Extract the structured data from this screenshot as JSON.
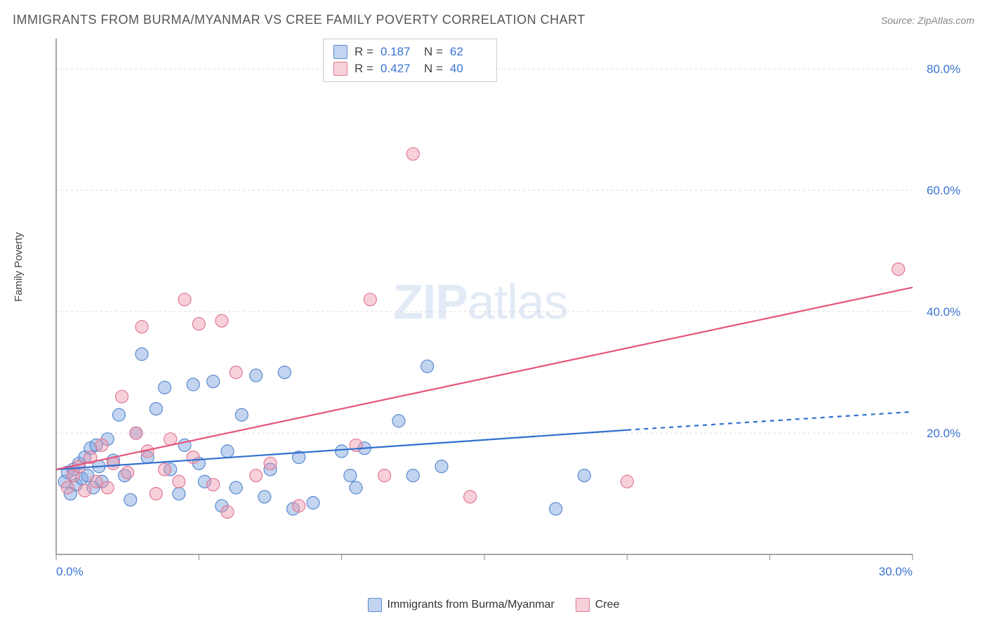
{
  "header": {
    "title": "IMMIGRANTS FROM BURMA/MYANMAR VS CREE FAMILY POVERTY CORRELATION CHART",
    "source": "Source: ZipAtlas.com"
  },
  "watermark": {
    "zip": "ZIP",
    "atlas": "atlas"
  },
  "y_axis_label": "Family Poverty",
  "chart": {
    "type": "scatter",
    "xlim": [
      0,
      30
    ],
    "ylim": [
      0,
      85
    ],
    "x_ticks": [
      0,
      5,
      10,
      15,
      20,
      25,
      30
    ],
    "x_tick_labels": [
      "0.0%",
      "",
      "",
      "",
      "",
      "",
      "30.0%"
    ],
    "y_ticks": [
      20,
      40,
      60,
      80
    ],
    "y_tick_labels": [
      "20.0%",
      "40.0%",
      "60.0%",
      "80.0%"
    ],
    "grid_color": "#d8d8d8",
    "axis_color": "#888888",
    "tick_label_color": "#3973d4",
    "tick_label_fontsize": 17,
    "plot_bg": "#ffffff",
    "series": [
      {
        "name": "Immigrants from Burma/Myanmar",
        "fill": "rgba(120,160,220,0.45)",
        "stroke": "#5a8ad0",
        "marker_r": 9,
        "R": "0.187",
        "N": "62",
        "trend": {
          "start": [
            0,
            14
          ],
          "solid_end": [
            20,
            20.5
          ],
          "dash_end": [
            30,
            23.5
          ],
          "stroke": "#2f6fd0",
          "width": 2.2
        },
        "points": [
          [
            0.3,
            12
          ],
          [
            0.4,
            13.5
          ],
          [
            0.5,
            10
          ],
          [
            0.6,
            14
          ],
          [
            0.7,
            11.5
          ],
          [
            0.8,
            15
          ],
          [
            0.9,
            12.5
          ],
          [
            1.0,
            16
          ],
          [
            1.1,
            13
          ],
          [
            1.2,
            17.5
          ],
          [
            1.3,
            11
          ],
          [
            1.4,
            18
          ],
          [
            1.5,
            14.5
          ],
          [
            1.6,
            12
          ],
          [
            1.8,
            19
          ],
          [
            2.0,
            15.5
          ],
          [
            2.2,
            23
          ],
          [
            2.4,
            13
          ],
          [
            2.6,
            9
          ],
          [
            2.8,
            20
          ],
          [
            3.0,
            33
          ],
          [
            3.2,
            16
          ],
          [
            3.5,
            24
          ],
          [
            3.8,
            27.5
          ],
          [
            4.0,
            14
          ],
          [
            4.3,
            10
          ],
          [
            4.5,
            18
          ],
          [
            4.8,
            28
          ],
          [
            5.0,
            15
          ],
          [
            5.2,
            12
          ],
          [
            5.5,
            28.5
          ],
          [
            5.8,
            8
          ],
          [
            6.0,
            17
          ],
          [
            6.3,
            11
          ],
          [
            6.5,
            23
          ],
          [
            7.0,
            29.5
          ],
          [
            7.3,
            9.5
          ],
          [
            7.5,
            14
          ],
          [
            8.0,
            30
          ],
          [
            8.3,
            7.5
          ],
          [
            8.5,
            16
          ],
          [
            9.0,
            8.5
          ],
          [
            10.0,
            17
          ],
          [
            10.3,
            13
          ],
          [
            10.5,
            11
          ],
          [
            10.8,
            17.5
          ],
          [
            12.0,
            22
          ],
          [
            12.5,
            13
          ],
          [
            13.0,
            31
          ],
          [
            13.5,
            14.5
          ],
          [
            17.5,
            7.5
          ],
          [
            18.5,
            13
          ]
        ]
      },
      {
        "name": "Cree",
        "fill": "rgba(240,150,170,0.45)",
        "stroke": "#e07a95",
        "marker_r": 9,
        "R": "0.427",
        "N": "40",
        "trend": {
          "start": [
            0,
            14
          ],
          "solid_end": [
            30,
            44
          ],
          "dash_end": null,
          "stroke": "#e5557a",
          "width": 2.2
        },
        "points": [
          [
            0.4,
            11
          ],
          [
            0.6,
            13
          ],
          [
            0.8,
            14.5
          ],
          [
            1.0,
            10.5
          ],
          [
            1.2,
            16
          ],
          [
            1.4,
            12
          ],
          [
            1.6,
            18
          ],
          [
            1.8,
            11
          ],
          [
            2.0,
            15
          ],
          [
            2.3,
            26
          ],
          [
            2.5,
            13.5
          ],
          [
            2.8,
            20
          ],
          [
            3.0,
            37.5
          ],
          [
            3.2,
            17
          ],
          [
            3.5,
            10
          ],
          [
            3.8,
            14
          ],
          [
            4.0,
            19
          ],
          [
            4.3,
            12
          ],
          [
            4.5,
            42
          ],
          [
            4.8,
            16
          ],
          [
            5.0,
            38
          ],
          [
            5.5,
            11.5
          ],
          [
            5.8,
            38.5
          ],
          [
            6.0,
            7
          ],
          [
            6.3,
            30
          ],
          [
            7.0,
            13
          ],
          [
            7.5,
            15
          ],
          [
            8.5,
            8
          ],
          [
            10.5,
            18
          ],
          [
            11.0,
            42
          ],
          [
            11.5,
            13
          ],
          [
            12.5,
            66
          ],
          [
            14.5,
            9.5
          ],
          [
            20.0,
            12
          ],
          [
            29.5,
            47
          ]
        ]
      }
    ]
  },
  "bottom_legend": [
    {
      "label": "Immigrants from Burma/Myanmar",
      "fill": "rgba(120,160,220,0.45)",
      "stroke": "#5a8ad0"
    },
    {
      "label": "Cree",
      "fill": "rgba(240,150,170,0.45)",
      "stroke": "#e07a95"
    }
  ],
  "top_legend": {
    "r_label": "R =",
    "n_label": "N ="
  }
}
